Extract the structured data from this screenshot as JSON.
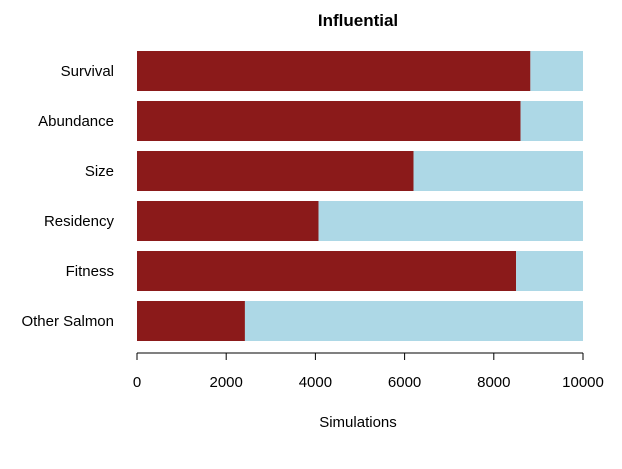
{
  "chart_data": {
    "type": "bar",
    "orientation": "horizontal",
    "stacked": true,
    "title": "Influential",
    "xlabel": "Simulations",
    "ylabel": "",
    "xlim": [
      0,
      10000
    ],
    "xticks": [
      0,
      2000,
      4000,
      6000,
      8000,
      10000
    ],
    "xtick_labels": [
      "0",
      "2000",
      "4000",
      "6000",
      "8000",
      "10000"
    ],
    "categories": [
      "Survival",
      "Abundance",
      "Size",
      "Residency",
      "Fitness",
      "Other Salmon"
    ],
    "series": [
      {
        "values": [
          8820,
          8600,
          6200,
          4070,
          8500,
          2420
        ]
      },
      {
        "values": [
          1180,
          1400,
          3800,
          5930,
          1500,
          7580
        ]
      }
    ],
    "colors": [
      "#8B1A1A",
      "#ADD8E6"
    ],
    "grid": false,
    "legend": "none"
  }
}
